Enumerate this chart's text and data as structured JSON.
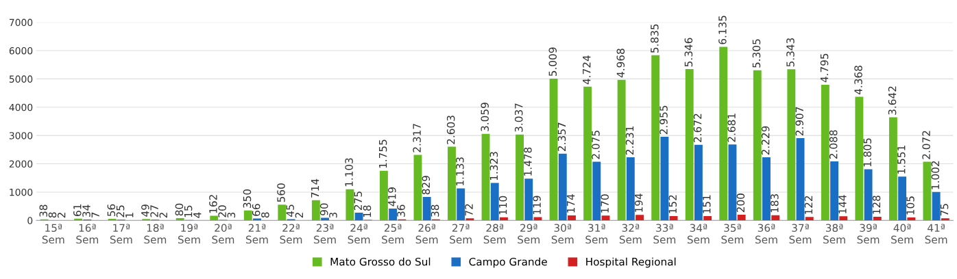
{
  "chart_data": {
    "type": "bar",
    "categories": [
      "15ª\nSem",
      "16ª\nSem",
      "17ª\nSem",
      "18ª\nSem",
      "19ª\nSem",
      "20ª\nSem",
      "21ª\nSem",
      "22ª\nSem",
      "23ª\nSem",
      "24ª\nSem",
      "25ª\nSem",
      "26ª\nSem",
      "27ª\nSem",
      "28ª\nSem",
      "29ª\nSem",
      "30ª\nSem",
      "31ª\nSem",
      "32ª\nSem",
      "33ª\nSem",
      "34ª\nSem",
      "35ª\nSem",
      "36ª\nSem",
      "37ª\nSem",
      "38ª\nSem",
      "39ª\nSem",
      "40ª\nSem",
      "41ª\nSem"
    ],
    "series": [
      {
        "name": "Mato Grosso do Sul",
        "color": "#66bb22",
        "values": [
          38,
          61,
          56,
          49,
          80,
          162,
          350,
          560,
          714,
          1103,
          1755,
          2317,
          2603,
          3059,
          3037,
          5009,
          4724,
          4968,
          5835,
          5346,
          6135,
          5305,
          5343,
          4795,
          4368,
          3642,
          2072
        ],
        "value_labels": [
          "38",
          "61",
          "56",
          "49",
          "80",
          "162",
          "350",
          "560",
          "714",
          "1.103",
          "1.755",
          "2.317",
          "2.603",
          "3.059",
          "3.037",
          "5.009",
          "4.724",
          "4.968",
          "5.835",
          "5.346",
          "6.135",
          "5.305",
          "5.343",
          "4.795",
          "4.368",
          "3.642",
          "2.072"
        ]
      },
      {
        "name": "Campo Grande",
        "color": "#1a6fc4",
        "values": [
          8,
          34,
          25,
          27,
          15,
          20,
          66,
          45,
          90,
          275,
          419,
          829,
          1133,
          1323,
          1478,
          2357,
          2075,
          2231,
          2955,
          2672,
          2681,
          2229,
          2907,
          2088,
          1805,
          1551,
          1002
        ],
        "value_labels": [
          "8",
          "34",
          "25",
          "27",
          "15",
          "20",
          "66",
          "45",
          "90",
          "275",
          "419",
          "829",
          "1.133",
          "1.323",
          "1.478",
          "2.357",
          "2.075",
          "2.231",
          "2.955",
          "2.672",
          "2.681",
          "2.229",
          "2.907",
          "2.088",
          "1.805",
          "1.551",
          "1.002"
        ]
      },
      {
        "name": "Hospital Regional",
        "color": "#d42020",
        "values": [
          2,
          7,
          1,
          2,
          4,
          3,
          8,
          2,
          3,
          18,
          36,
          38,
          72,
          110,
          119,
          174,
          170,
          194,
          152,
          151,
          200,
          183,
          122,
          144,
          128,
          105,
          75
        ],
        "value_labels": [
          "2",
          "7",
          "1",
          "2",
          "4",
          "3",
          "8",
          "2",
          "3",
          "18",
          "36",
          "38",
          "72",
          "110",
          "119",
          "174",
          "170",
          "194",
          "152",
          "151",
          "200",
          "183",
          "122",
          "144",
          "128",
          "105",
          "75"
        ]
      }
    ],
    "ylim": [
      0,
      7000
    ],
    "yticks": [
      0,
      1000,
      2000,
      3000,
      4000,
      5000,
      6000,
      7000
    ],
    "grid": "y",
    "legend": "bottom"
  }
}
